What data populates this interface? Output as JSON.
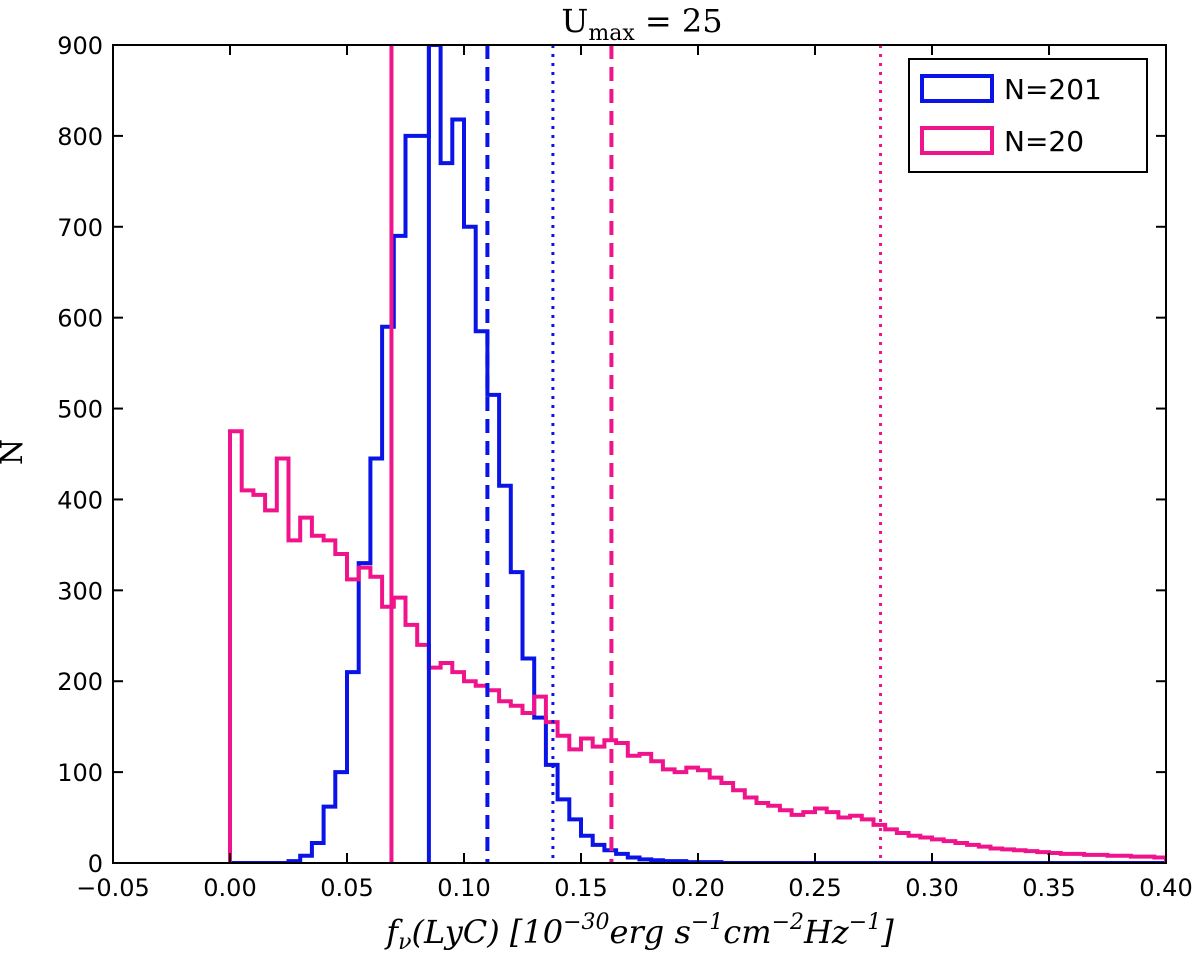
{
  "chart_data": {
    "type": "histogram",
    "title": "U_max = 25",
    "title_main": "U",
    "title_sub": "max",
    "title_rest": " = 25",
    "xlabel": "f_ν(LyC) [10^-30 erg s^-1 cm^-2 Hz^-1]",
    "xlabel_parts": {
      "f": "f",
      "nu": "ν",
      "lyc": "(LyC) [10",
      "exp1": "−30",
      "erg": "erg s",
      "exp2": "−1",
      "cm": "cm",
      "exp3": "−2",
      "hz": "Hz",
      "exp4": "−1",
      "close": "]"
    },
    "ylabel": "N",
    "xlim": [
      -0.05,
      0.4
    ],
    "ylim": [
      0,
      900
    ],
    "xticks": [
      "−0.05",
      "0.00",
      "0.05",
      "0.10",
      "0.15",
      "0.20",
      "0.25",
      "0.30",
      "0.35",
      "0.40"
    ],
    "yticks": [
      "0",
      "100",
      "200",
      "300",
      "400",
      "500",
      "600",
      "700",
      "800",
      "900"
    ],
    "legend_position": "top-right",
    "bin_start": 0.0,
    "bin_width": 0.005,
    "series": [
      {
        "name": "N=201",
        "color": "#0a14e6",
        "values": [
          0,
          0,
          0,
          0,
          0,
          2,
          8,
          22,
          62,
          100,
          210,
          330,
          445,
          590,
          690,
          800,
          800,
          900,
          770,
          818,
          700,
          585,
          515,
          415,
          320,
          225,
          160,
          108,
          70,
          48,
          30,
          20,
          14,
          10,
          6,
          4,
          3,
          2,
          2,
          1,
          1,
          1,
          0,
          0,
          0,
          0,
          0,
          0,
          0,
          0,
          0,
          0,
          0,
          0,
          0,
          0,
          0,
          0,
          0,
          0,
          0,
          0,
          0,
          0,
          0,
          0,
          0,
          0,
          0,
          0,
          0,
          0,
          0,
          0,
          0,
          0,
          0,
          0,
          0,
          0
        ],
        "lines": {
          "solid": 0.085,
          "dashed": 0.11,
          "dotted": 0.138
        }
      },
      {
        "name": "N=20",
        "color": "#f0148c",
        "values": [
          475,
          410,
          405,
          388,
          445,
          355,
          380,
          360,
          355,
          340,
          312,
          325,
          315,
          282,
          292,
          262,
          240,
          215,
          220,
          210,
          200,
          195,
          190,
          178,
          173,
          165,
          183,
          155,
          140,
          125,
          137,
          128,
          135,
          132,
          118,
          120,
          112,
          103,
          100,
          105,
          102,
          94,
          88,
          80,
          72,
          66,
          63,
          58,
          53,
          56,
          60,
          56,
          50,
          52,
          48,
          42,
          37,
          33,
          30,
          28,
          26,
          24,
          22,
          20,
          18,
          16,
          15,
          14,
          13,
          12,
          11,
          10,
          10,
          9,
          9,
          8,
          8,
          7,
          7,
          6
        ],
        "lines": {
          "solid": 0.069,
          "dashed": 0.163,
          "dotted": 0.278
        }
      }
    ]
  }
}
